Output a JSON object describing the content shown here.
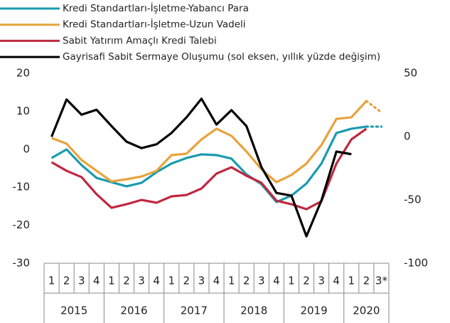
{
  "chart_data": {
    "type": "line",
    "categories": [
      "1",
      "2",
      "3",
      "4",
      "1",
      "2",
      "3",
      "4",
      "1",
      "2",
      "3",
      "4",
      "1",
      "2",
      "3",
      "4",
      "1",
      "2",
      "3",
      "4",
      "1",
      "2",
      "3*"
    ],
    "groups": [
      "2015",
      "2016",
      "2017",
      "2018",
      "2019",
      "2020"
    ],
    "ylim": [
      -30,
      20
    ],
    "yticks": [
      -30,
      -20,
      -10,
      0,
      10,
      20
    ],
    "y2lim": [
      -100,
      50
    ],
    "y2ticks": [
      -100,
      -50,
      0,
      50
    ],
    "series": [
      {
        "name": "Kredi Standartları-İşletme-Yabancı Para",
        "color": "#1a9bb0",
        "axis": "y2",
        "dotted_from": 21,
        "values": [
          -16.9,
          -10.1,
          -22.5,
          -32.6,
          -36,
          -39.3,
          -36.5,
          -28.1,
          -21.3,
          -16.9,
          -14,
          -14.6,
          -17.4,
          -29.8,
          -37.6,
          -51.7,
          -46.6,
          -37.1,
          -21.3,
          2.8,
          6.2,
          7.9,
          7.9
        ]
      },
      {
        "name": "Kredi Standartları-İşletme-Uzun Vadeli",
        "color": "#e8a33c",
        "axis": "y2",
        "dotted_from": 21,
        "values": [
          -1.1,
          -5.6,
          -18.5,
          -27,
          -35.4,
          -33.7,
          -31.5,
          -27,
          -14.6,
          -13.5,
          -2.2,
          6.2,
          0.6,
          -11.8,
          -25.8,
          -36,
          -30.3,
          -21.3,
          -6.7,
          14,
          15.2,
          28.1,
          19.1
        ]
      },
      {
        "name": "Sabit Yatırım Amaçlı Kredi Talebi",
        "color": "#c0283f",
        "axis": "y2",
        "values": [
          -20.2,
          -27,
          -32,
          -45.5,
          -56.2,
          -53.4,
          -50,
          -52.2,
          -47.2,
          -46.1,
          -41,
          -29.2,
          -24.2,
          -30.9,
          -36.5,
          -50.6,
          -53.4,
          -57.3,
          -51.1,
          -21.3,
          -2.2,
          6.2,
          null
        ]
      },
      {
        "name": "Gayrisafi Sabit Sermaye Oluşumu (sol eksen, yıllık yüzde değişim)",
        "color": "#000000",
        "axis": "y",
        "values": [
          3.3,
          13.1,
          9.1,
          10.4,
          6.1,
          2,
          0.3,
          1.3,
          4.3,
          8.4,
          13.3,
          6.5,
          10.3,
          6.1,
          -4.7,
          -11.5,
          -12.2,
          -22.9,
          -13.5,
          -0.6,
          -1.3,
          null,
          null
        ]
      }
    ]
  }
}
